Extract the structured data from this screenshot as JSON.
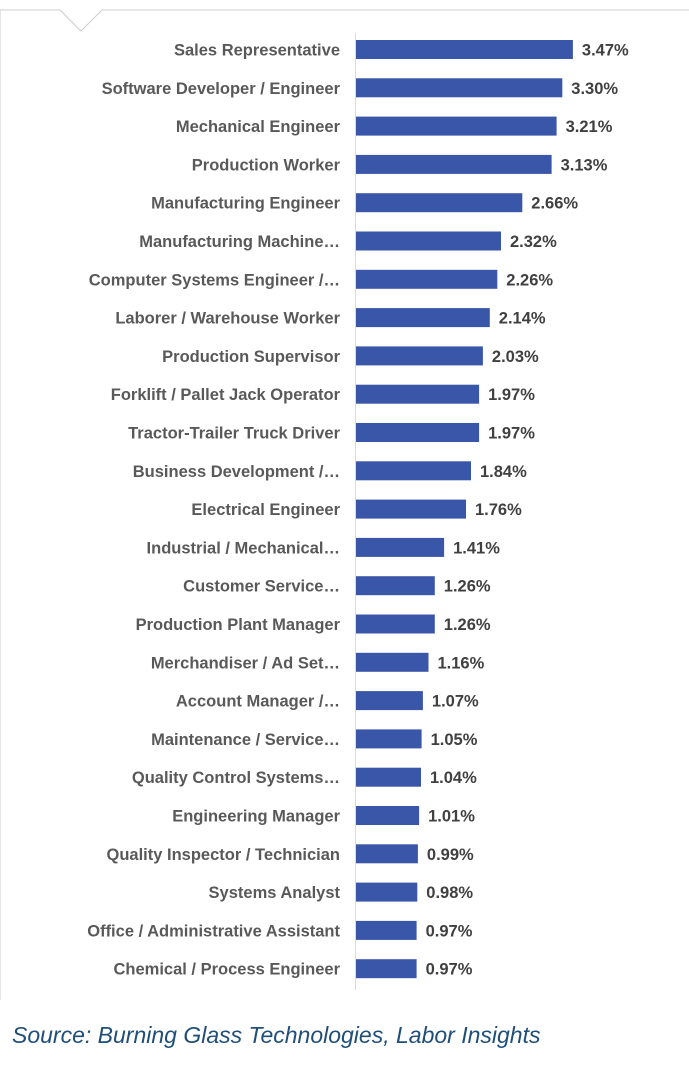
{
  "chart_data": {
    "type": "bar",
    "orientation": "horizontal",
    "title": "",
    "xlabel": "",
    "ylabel": "",
    "categories": [
      "Sales Representative",
      "Software Developer / Engineer",
      "Mechanical Engineer",
      "Production Worker",
      "Manufacturing Engineer",
      "Manufacturing Machine…",
      "Computer Systems Engineer /…",
      "Laborer / Warehouse Worker",
      "Production Supervisor",
      "Forklift / Pallet Jack Operator",
      "Tractor-Trailer Truck Driver",
      "Business Development /…",
      "Electrical Engineer",
      "Industrial / Mechanical…",
      "Customer Service…",
      "Production Plant Manager",
      "Merchandiser / Ad Set…",
      "Account Manager /…",
      "Maintenance / Service…",
      "Quality Control Systems…",
      "Engineering Manager",
      "Quality Inspector / Technician",
      "Systems Analyst",
      "Office / Administrative Assistant",
      "Chemical / Process Engineer"
    ],
    "values": [
      3.47,
      3.3,
      3.21,
      3.13,
      2.66,
      2.32,
      2.26,
      2.14,
      2.03,
      1.97,
      1.97,
      1.84,
      1.76,
      1.41,
      1.26,
      1.26,
      1.16,
      1.07,
      1.05,
      1.04,
      1.01,
      0.99,
      0.98,
      0.97,
      0.97
    ],
    "value_labels": [
      "3.47%",
      "3.30%",
      "3.21%",
      "3.13%",
      "2.66%",
      "2.32%",
      "2.26%",
      "2.14%",
      "2.03%",
      "1.97%",
      "1.97%",
      "1.84%",
      "1.76%",
      "1.41%",
      "1.26%",
      "1.26%",
      "1.16%",
      "1.07%",
      "1.05%",
      "1.04%",
      "1.01%",
      "0.99%",
      "0.98%",
      "0.97%",
      "0.97%"
    ],
    "xlim": [
      0,
      3.5
    ],
    "grid": false,
    "bar_color": "#3a56a8",
    "axis_color": "#d9d9d9"
  },
  "source": "Source: Burning Glass Technologies, Labor Insights"
}
